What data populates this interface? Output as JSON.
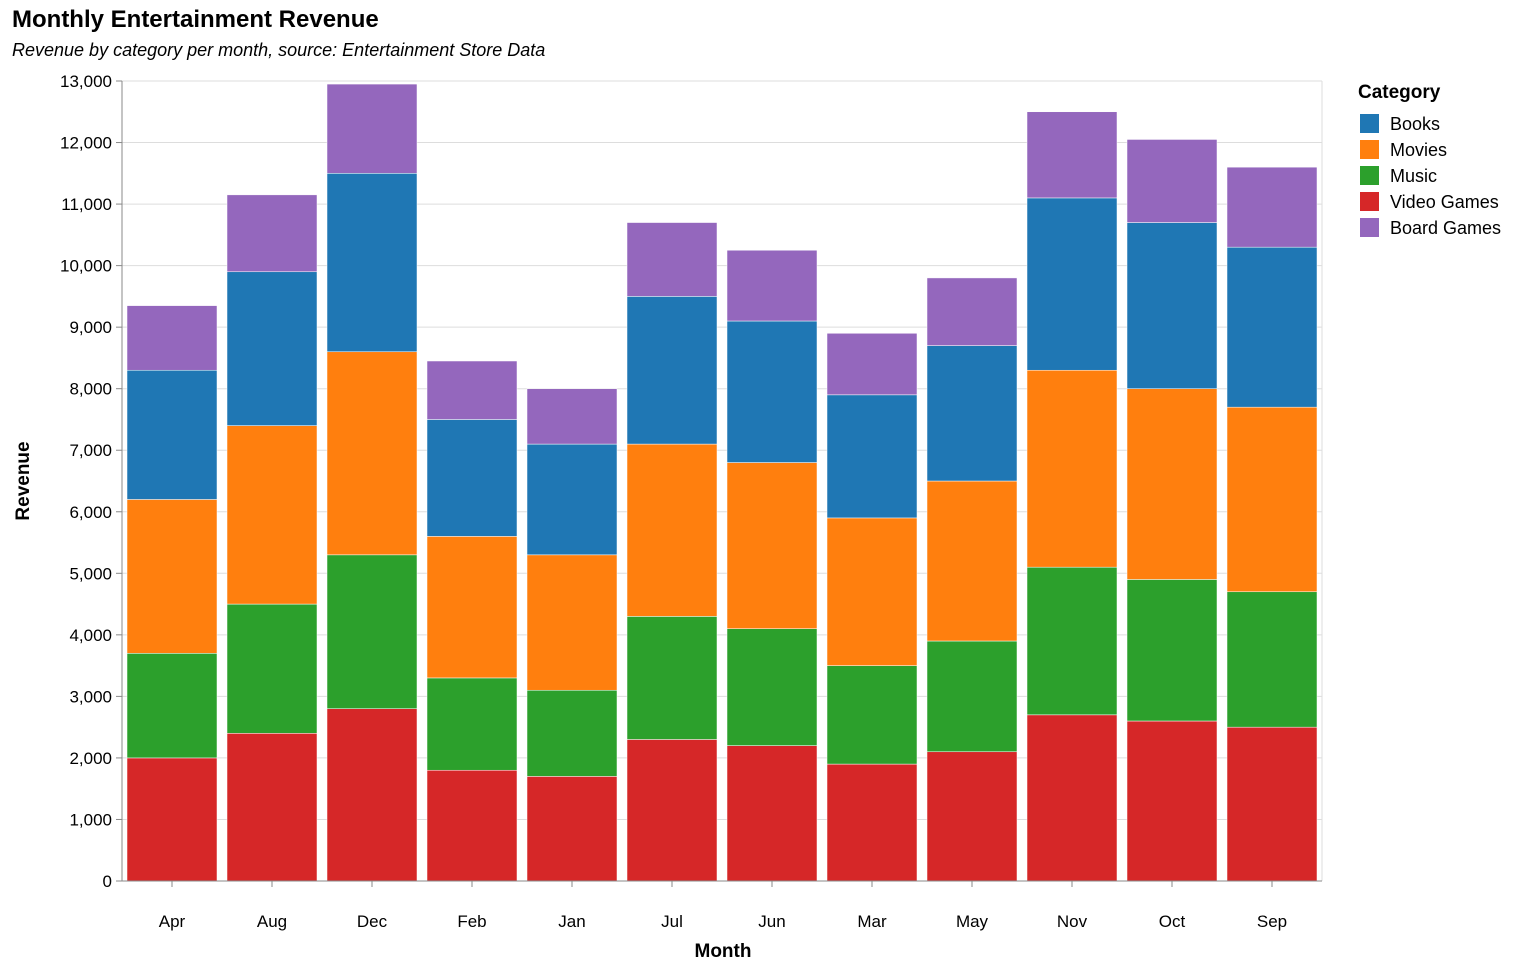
{
  "chart_data": {
    "type": "bar",
    "stacked": true,
    "title": "Monthly Entertainment Revenue",
    "subtitle": "Revenue by category per month, source: Entertainment Store Data",
    "xlabel": "Month",
    "ylabel": "Revenue",
    "ylim": [
      0,
      13000
    ],
    "yticks": [
      0,
      1000,
      2000,
      3000,
      4000,
      5000,
      6000,
      7000,
      8000,
      9000,
      10000,
      11000,
      12000,
      13000
    ],
    "ytick_labels": [
      "0",
      "1,000",
      "2,000",
      "3,000",
      "4,000",
      "5,000",
      "6,000",
      "7,000",
      "8,000",
      "9,000",
      "10,000",
      "11,000",
      "12,000",
      "13,000"
    ],
    "grid": true,
    "categories": [
      "Apr",
      "Aug",
      "Dec",
      "Feb",
      "Jan",
      "Jul",
      "Jun",
      "Mar",
      "May",
      "Nov",
      "Oct",
      "Sep"
    ],
    "legend": {
      "title": "Category",
      "position": "top-right"
    },
    "series": [
      {
        "name": "Video Games",
        "color": "#d62728",
        "values": [
          2000,
          2400,
          2800,
          1800,
          1700,
          2300,
          2200,
          1900,
          2100,
          2700,
          2600,
          2500
        ]
      },
      {
        "name": "Music",
        "color": "#2ca02c",
        "values": [
          1700,
          2100,
          2500,
          1500,
          1400,
          2000,
          1900,
          1600,
          1800,
          2400,
          2300,
          2200
        ]
      },
      {
        "name": "Movies",
        "color": "#ff7f0e",
        "values": [
          2500,
          2900,
          3300,
          2300,
          2200,
          2800,
          2700,
          2400,
          2600,
          3200,
          3100,
          3000
        ]
      },
      {
        "name": "Books",
        "color": "#1f77b4",
        "values": [
          2100,
          2500,
          2900,
          1900,
          1800,
          2400,
          2300,
          2000,
          2200,
          2800,
          2700,
          2600
        ]
      },
      {
        "name": "Board Games",
        "color": "#9467bd",
        "values": [
          1050,
          1250,
          1450,
          950,
          900,
          1200,
          1150,
          1000,
          1100,
          1400,
          1350,
          1300
        ]
      }
    ],
    "legend_order": [
      "Books",
      "Movies",
      "Music",
      "Video Games",
      "Board Games"
    ]
  }
}
